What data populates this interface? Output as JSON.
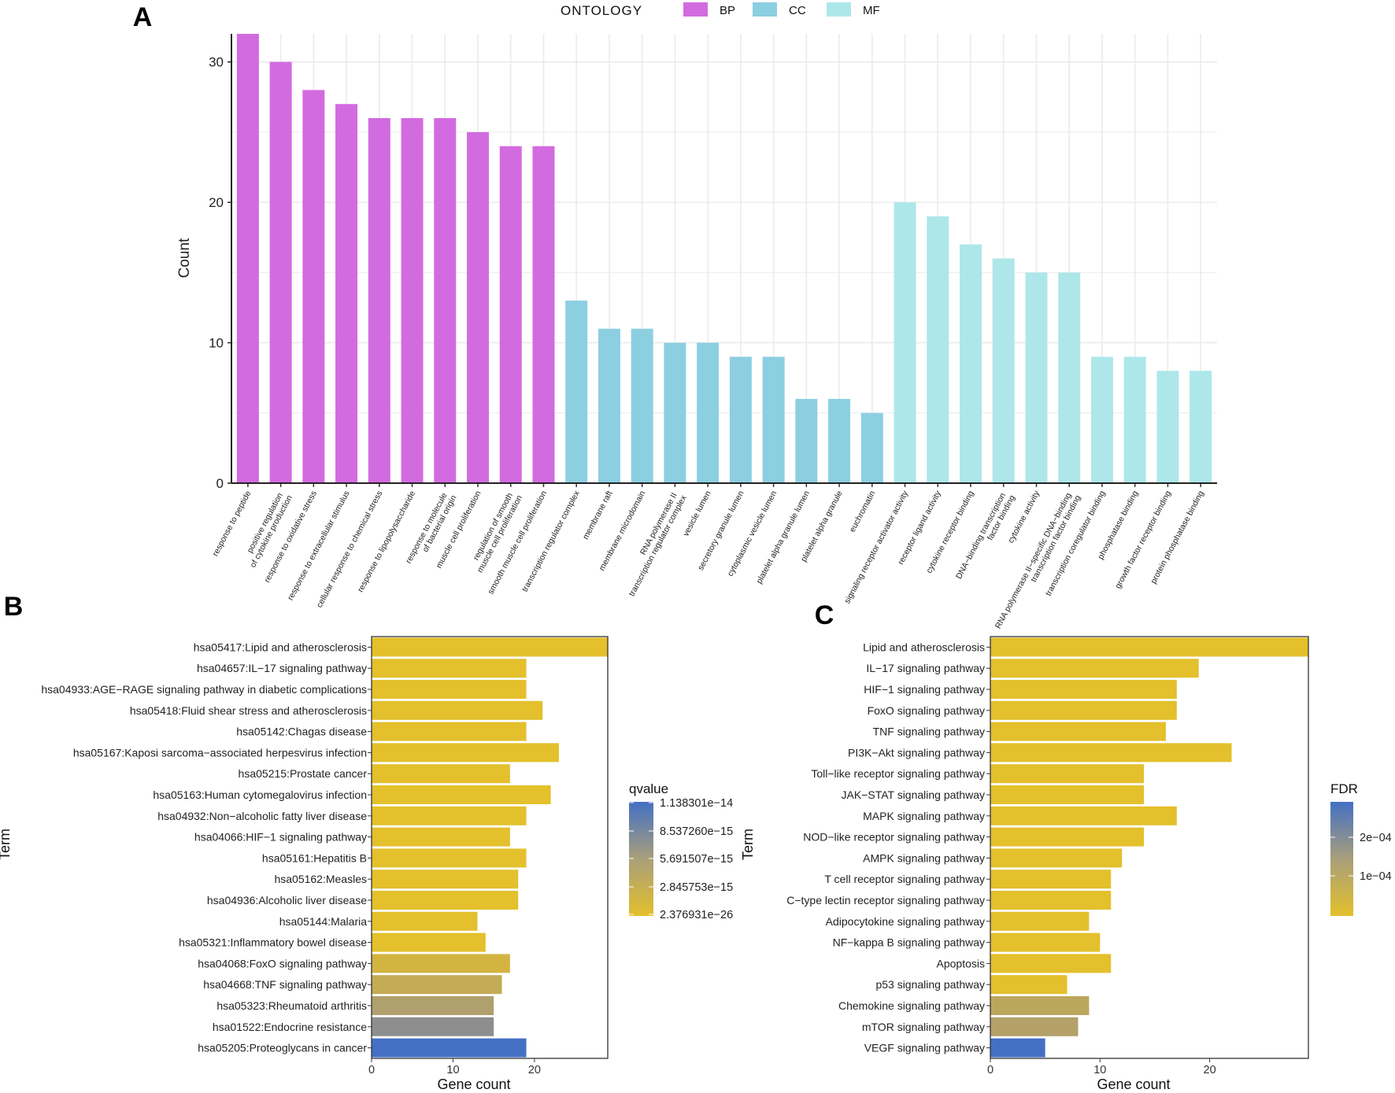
{
  "chart_data": [
    {
      "panel": "A",
      "type": "bar",
      "ylabel": "Count",
      "xlabel": "",
      "ylim": [
        0,
        32
      ],
      "yticks": [
        0,
        10,
        20,
        30
      ],
      "grid": true,
      "legend": {
        "title": "ONTOLOGY",
        "placement": "top",
        "entries": [
          {
            "label": "BP",
            "color": "#D36BE0"
          },
          {
            "label": "CC",
            "color": "#8CCFE1"
          },
          {
            "label": "MF",
            "color": "#AEE7E9"
          }
        ]
      },
      "categories": [
        "response to peptide",
        "positive regulation of cytokine production",
        "response to oxidative stress",
        "response to extracellular stimulus",
        "cellular response to chemical stress",
        "response to lipopolysaccharide",
        "response to molecule of bacterial origin",
        "muscle cell proliferation",
        "regulation of smooth muscle cell proliferation",
        "smooth muscle cell proliferation",
        "transcription regulator complex",
        "membrane raft",
        "membrane microdomain",
        "RNA polymerase II transcription regulator complex",
        "vesicle lumen",
        "secretory granule lumen",
        "cytoplasmic vesicle lumen",
        "platelet alpha granule lumen",
        "platelet alpha granule",
        "euchromatin",
        "signaling receptor activator activity",
        "receptor ligand activity",
        "cytokine receptor binding",
        "DNA−binding transcription factor binding",
        "cytokine activity",
        "RNA polymerase II−specific DNA−binding transcription factor binding",
        "transcription coregulator binding",
        "phosphatase binding",
        "growth factor receptor binding",
        "protein phosphatase binding"
      ],
      "groups": [
        "BP",
        "BP",
        "BP",
        "BP",
        "BP",
        "BP",
        "BP",
        "BP",
        "BP",
        "BP",
        "CC",
        "CC",
        "CC",
        "CC",
        "CC",
        "CC",
        "CC",
        "CC",
        "CC",
        "CC",
        "MF",
        "MF",
        "MF",
        "MF",
        "MF",
        "MF",
        "MF",
        "MF",
        "MF",
        "MF"
      ],
      "values": [
        32,
        30,
        28,
        27,
        26,
        26,
        26,
        25,
        24,
        24,
        13,
        11,
        11,
        10,
        10,
        9,
        9,
        6,
        6,
        5,
        20,
        19,
        17,
        16,
        15,
        15,
        9,
        9,
        8,
        8
      ]
    },
    {
      "panel": "B",
      "type": "bar",
      "orientation": "horizontal",
      "xlabel": "Gene count",
      "ylabel": "Term",
      "xlim": [
        0,
        29
      ],
      "xticks": [
        0,
        10,
        20
      ],
      "legend": {
        "title": "qvalue",
        "placement": "right",
        "type": "colorbar",
        "low_color": "#E3C02C",
        "high_color": "#4470C4",
        "labels": [
          "1.138301e−14",
          "8.537260e−15",
          "5.691507e−15",
          "2.845753e−15",
          "2.376931e−26"
        ]
      },
      "categories": [
        "hsa05417:Lipid and atherosclerosis",
        "hsa04657:IL−17 signaling pathway",
        "hsa04933:AGE−RAGE signaling pathway in diabetic complications",
        "hsa05418:Fluid shear stress and atherosclerosis",
        "hsa05142:Chagas disease",
        "hsa05167:Kaposi sarcoma−associated herpesvirus infection",
        "hsa05215:Prostate cancer",
        "hsa05163:Human cytomegalovirus infection",
        "hsa04932:Non−alcoholic fatty liver disease",
        "hsa04066:HIF−1 signaling pathway",
        "hsa05161:Hepatitis B",
        "hsa05162:Measles",
        "hsa04936:Alcoholic liver disease",
        "hsa05144:Malaria",
        "hsa05321:Inflammatory bowel disease",
        "hsa04068:FoxO signaling pathway",
        "hsa04668:TNF signaling pathway",
        "hsa05323:Rheumatoid arthritis",
        "hsa01522:Endocrine resistance",
        "hsa05205:Proteoglycans in cancer"
      ],
      "values": [
        29,
        19,
        19,
        21,
        19,
        23,
        17,
        22,
        19,
        17,
        19,
        18,
        18,
        13,
        14,
        17,
        16,
        15,
        15,
        19
      ],
      "colors": [
        "#E3C02C",
        "#E3C02C",
        "#E3C02C",
        "#E3C02C",
        "#E3C02C",
        "#E3C02C",
        "#E3C02C",
        "#E3C02C",
        "#E3C02C",
        "#E3C02C",
        "#E3C02C",
        "#E3C02C",
        "#E3C02C",
        "#E3C02C",
        "#E3C02C",
        "#D3B441",
        "#C4AB55",
        "#AFA06D",
        "#8F8E8E",
        "#4470C4"
      ]
    },
    {
      "panel": "C",
      "type": "bar",
      "orientation": "horizontal",
      "xlabel": "Gene count",
      "ylabel": "Term",
      "xlim": [
        0,
        29
      ],
      "xticks": [
        0,
        10,
        20
      ],
      "legend": {
        "title": "FDR",
        "placement": "right",
        "type": "colorbar",
        "low_color": "#E3C02C",
        "high_color": "#4470C4",
        "labels": [
          "2e−04",
          "1e−04"
        ]
      },
      "categories": [
        "Lipid and atherosclerosis",
        "IL−17 signaling pathway",
        "HIF−1 signaling pathway",
        "FoxO signaling pathway",
        "TNF signaling pathway",
        "PI3K−Akt signaling pathway",
        "Toll−like receptor signaling pathway",
        "JAK−STAT signaling pathway",
        "MAPK signaling pathway",
        "NOD−like receptor signaling pathway",
        "AMPK signaling pathway",
        "T cell receptor signaling pathway",
        "C−type lectin receptor signaling pathway",
        "Adipocytokine signaling pathway",
        "NF−kappa B signaling pathway",
        "Apoptosis",
        "p53 signaling pathway",
        "Chemokine signaling pathway",
        "mTOR signaling pathway",
        "VEGF signaling pathway"
      ],
      "values": [
        29,
        19,
        17,
        17,
        16,
        22,
        14,
        14,
        17,
        14,
        12,
        11,
        11,
        9,
        10,
        11,
        7,
        9,
        8,
        5
      ],
      "colors": [
        "#E3C02C",
        "#E3C02C",
        "#E3C02C",
        "#E3C02C",
        "#E3C02C",
        "#E3C02C",
        "#E3C02C",
        "#E3C02C",
        "#E3C02C",
        "#E3C02C",
        "#E3C02C",
        "#E3C02C",
        "#E3C02C",
        "#E3C02C",
        "#E3C02C",
        "#E3C02C",
        "#E3C02C",
        "#BCA65E",
        "#B3A168",
        "#4470C4"
      ]
    }
  ]
}
